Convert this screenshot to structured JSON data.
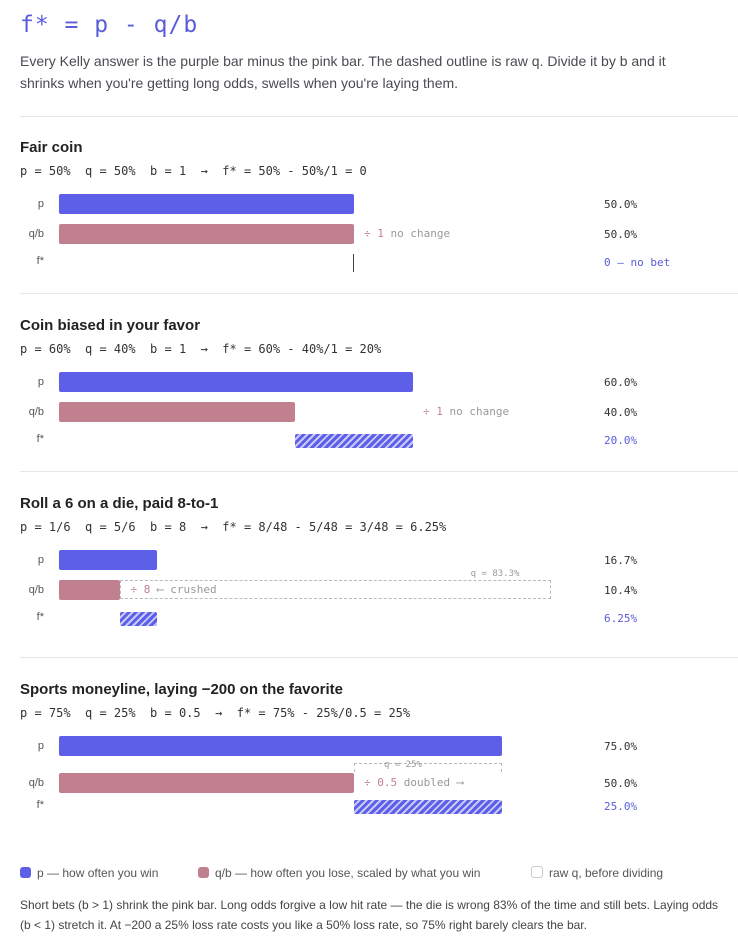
{
  "title": "f* = p - q/b",
  "intro": "Every Kelly answer is the purple bar minus the pink bar. The dashed outline is raw q. Divide it by b and it shrinks when you're getting long odds, swells when you're laying them.",
  "row_labels": {
    "p": "p",
    "q": "q/b",
    "f": "f*"
  },
  "sections": [
    {
      "title": "Fair coin",
      "formula": "p = 50%  q = 50%  b = 1  →  f* = 50% - 50%/1 = 0",
      "p": 0.5,
      "q": 0.5,
      "b": 1,
      "qb": 0.5,
      "f": 0,
      "note_div": "÷ 1",
      "note_text": "no change",
      "val_p": "50.0%",
      "val_q": "50.0%",
      "val_f": "0 — no bet"
    },
    {
      "title": "Coin biased in your favor",
      "formula": "p = 60%  q = 40%  b = 1  →  f* = 60% - 40%/1 = 20%",
      "p": 0.6,
      "q": 0.4,
      "b": 1,
      "qb": 0.4,
      "f": 0.2,
      "note_div": "÷ 1",
      "note_text": "no change",
      "val_p": "60.0%",
      "val_q": "40.0%",
      "val_f": "20.0%"
    },
    {
      "title": "Roll a 6 on a die, paid 8-to-1",
      "formula": "p = 1/6  q = 5/6  b = 8  →  f* = 8/48 - 5/48 = 3/48 = 6.25%",
      "p": 0.1667,
      "q": 0.8333,
      "b": 8,
      "qb": 0.1042,
      "f": 0.0625,
      "ghost_label": "q = 83.3%",
      "note_div": "÷ 8",
      "note_text": "⟵ crushed",
      "val_p": "16.7%",
      "val_q": "10.4%",
      "val_f": "6.25%"
    },
    {
      "title": "Sports moneyline, laying −200 on the favorite",
      "formula": "p = 75%  q = 25%  b = 0.5  →  f* = 75% - 25%/0.5 = 25%",
      "p": 0.75,
      "q": 0.25,
      "b": 0.5,
      "qb": 0.5,
      "f": 0.25,
      "ghost_label": "q = 25%",
      "note_div": "÷ 0.5",
      "note_text": "doubled ⟶",
      "val_p": "75.0%",
      "val_q": "50.0%",
      "val_f": "25.0%"
    }
  ],
  "legend": {
    "p": "p — how often you win",
    "q": "q/b — how often you lose, scaled by what you win",
    "raw": "raw q, before dividing"
  },
  "footer": "Short bets (b > 1) shrink the pink bar. Long odds forgive a low hit rate — the die is wrong 83% of the time and still bets. Laying odds (b < 1) stretch it. At −200 a 25% loss rate costs you like a 50% loss rate, so 75% right barely clears the bar.",
  "colors": {
    "p": "#5d5fe8",
    "q": "#c0808f",
    "accent": "#5a5cdc"
  }
}
